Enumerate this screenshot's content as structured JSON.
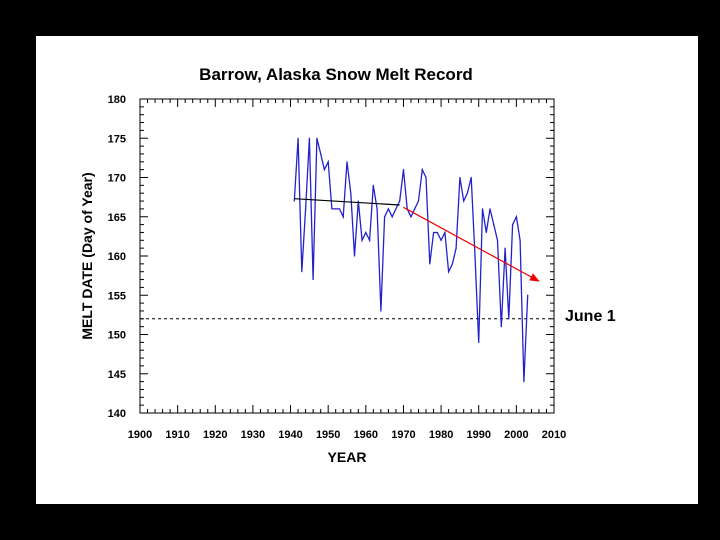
{
  "chart_data": {
    "type": "line",
    "title": "Barrow, Alaska Snow Melt Record",
    "xlabel": "YEAR",
    "ylabel": "MELT DATE (Day of Year)",
    "xlim": [
      1900,
      2010
    ],
    "ylim": [
      140,
      180
    ],
    "x_ticks": [
      1900,
      1910,
      1920,
      1930,
      1940,
      1950,
      1960,
      1970,
      1980,
      1990,
      2000,
      2010
    ],
    "y_ticks": [
      140,
      145,
      150,
      155,
      160,
      165,
      170,
      175,
      180
    ],
    "grid": false,
    "series": [
      {
        "color": "#2222cc",
        "x": [
          1941,
          1942,
          1943,
          1944,
          1945,
          1946,
          1947,
          1948,
          1949,
          1950,
          1951,
          1952,
          1953,
          1954,
          1955,
          1956,
          1957,
          1958,
          1959,
          1960,
          1961,
          1962,
          1963,
          1964,
          1965,
          1966,
          1967,
          1968,
          1969,
          1970,
          1971,
          1972,
          1973,
          1974,
          1975,
          1976,
          1977,
          1978,
          1979,
          1980,
          1981,
          1982,
          1983,
          1984,
          1985,
          1986,
          1987,
          1988,
          1989,
          1990,
          1991,
          1992,
          1993,
          1994,
          1995,
          1996,
          1997,
          1998,
          1999,
          2000,
          2001,
          2002,
          2003
        ],
        "y": [
          167,
          175,
          158,
          166,
          175,
          157,
          175,
          173,
          171,
          172,
          166,
          166,
          166,
          165,
          172,
          168,
          160,
          167,
          162,
          163,
          162,
          169,
          166,
          153,
          165,
          166,
          165,
          166,
          167,
          171,
          166,
          165,
          166,
          167,
          171,
          170,
          159,
          163,
          163,
          162,
          163,
          158,
          159,
          161,
          170,
          167,
          168,
          170,
          160,
          149,
          166,
          163,
          166,
          164,
          162,
          151,
          161,
          152,
          164,
          165,
          162,
          144,
          155
        ]
      }
    ],
    "annotations": {
      "early_trend": {
        "color": "#000000",
        "x": [
          1941,
          1969
        ],
        "y": [
          167.3,
          166.5
        ]
      },
      "recent_trend_arrow": {
        "color": "#ee0000",
        "x": [
          1970,
          2006
        ],
        "y": [
          166.2,
          156.8
        ]
      },
      "june_1_line": {
        "y": 152,
        "label": "June 1",
        "style": "dashed"
      }
    }
  }
}
